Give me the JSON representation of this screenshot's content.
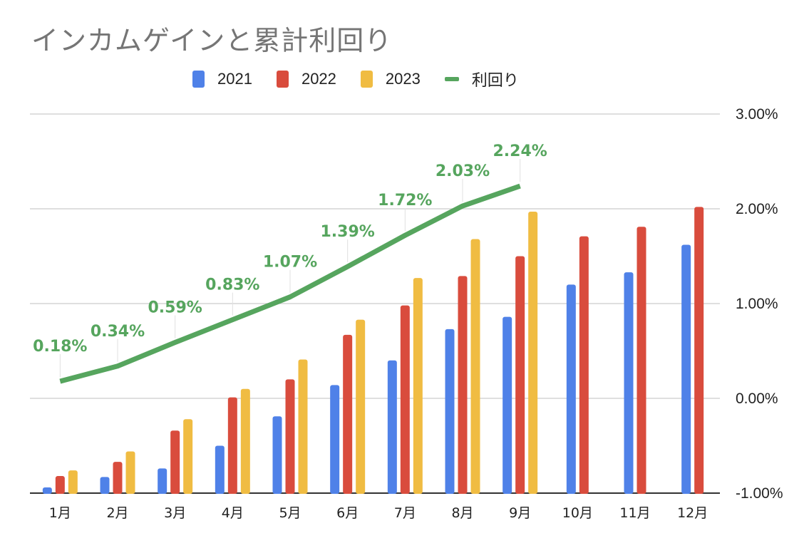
{
  "colors": {
    "s2021": "#4F81E8",
    "s2022": "#D94C3D",
    "s2023": "#F0BC42",
    "line": "#56A55E",
    "title": "#757575",
    "grid": "#cccccc",
    "baseline": "#333333"
  },
  "chart_data": {
    "type": "bar",
    "title": "インカムゲインと累計利回り",
    "xlabel": "",
    "ylabel": "",
    "categories": [
      "1月",
      "2月",
      "3月",
      "4月",
      "5月",
      "6月",
      "7月",
      "8月",
      "9月",
      "10月",
      "11月",
      "12月"
    ],
    "series": [
      {
        "name": "2021",
        "type": "bar",
        "axis": "left",
        "values": [
          0.06,
          0.17,
          0.26,
          0.5,
          0.81,
          1.14,
          1.4,
          1.73,
          1.86,
          2.2,
          2.33,
          2.62
        ]
      },
      {
        "name": "2022",
        "type": "bar",
        "axis": "left",
        "values": [
          0.18,
          0.33,
          0.66,
          1.01,
          1.2,
          1.67,
          1.98,
          2.29,
          2.5,
          2.71,
          2.81,
          3.02
        ]
      },
      {
        "name": "2023",
        "type": "bar",
        "axis": "left",
        "values": [
          0.24,
          0.44,
          0.78,
          1.1,
          1.41,
          1.83,
          2.27,
          2.68,
          2.97,
          null,
          null,
          null
        ]
      },
      {
        "name": "利回り",
        "type": "line",
        "axis": "right",
        "values": [
          0.18,
          0.34,
          0.59,
          0.83,
          1.07,
          1.39,
          1.72,
          2.03,
          2.24,
          null,
          null,
          null
        ],
        "data_labels": [
          "0.18%",
          "0.34%",
          "0.59%",
          "0.83%",
          "1.07%",
          "1.39%",
          "1.72%",
          "2.03%",
          "2.24%"
        ]
      }
    ],
    "left_axis": {
      "visible": false,
      "ylim": [
        0,
        4
      ],
      "note": "unlabeled axis; bar values in relative units"
    },
    "right_axis": {
      "ylim": [
        -1,
        3
      ],
      "ticks": [
        3,
        2,
        1,
        0,
        -1
      ],
      "tick_labels": [
        "3.00%",
        "2.00%",
        "1.00%",
        "0.00%",
        "-1.00%"
      ]
    },
    "grid": true,
    "legend": {
      "position": "top",
      "entries": [
        "2021",
        "2022",
        "2023",
        "利回り"
      ]
    }
  }
}
